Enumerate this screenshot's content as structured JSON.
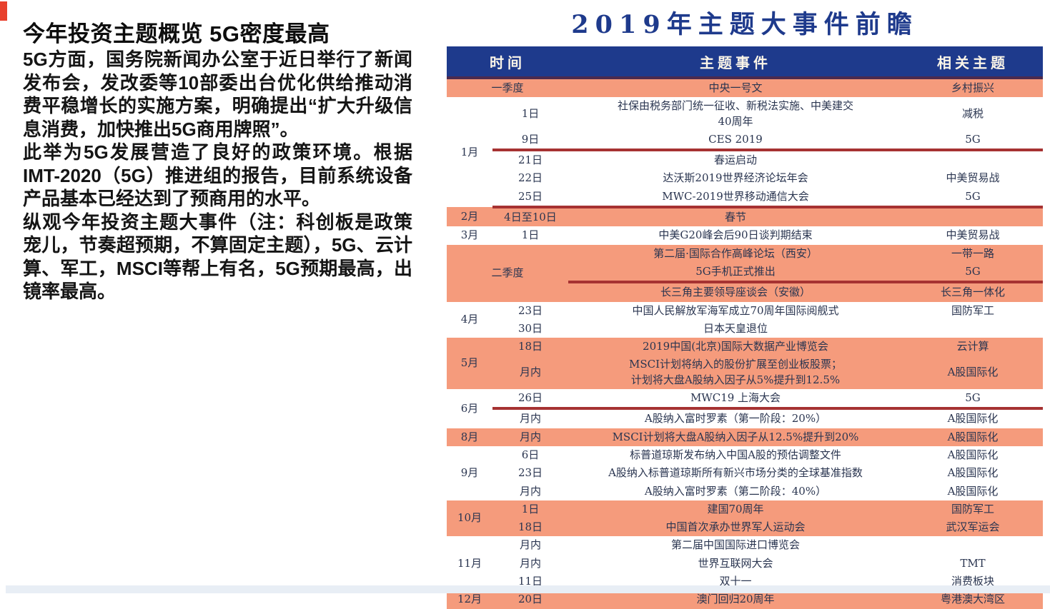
{
  "colors": {
    "navy": "#1E3A8C",
    "salmon_row": "#F59B7C",
    "underline_red": "#A63232",
    "corner_red": "#E8402C",
    "footer_blue": "#E8EEF5"
  },
  "left_panel": {
    "title": "今年投资主题概览  5G密度最高",
    "paragraphs": [
      "5G方面，国务院新闻办公室于近日举行了新闻发布会，发改委等10部委出台优化供给推动消费平稳增长的实施方案，明确提出“扩大升级信息消费，加快推出5G商用牌照”。",
      "此举为5G发展营造了良好的政策环境。根据IMT-2020（5G）推进组的报告，目前系统设备产品基本已经达到了预商用的水平。",
      "纵观今年投资主题大事件（注：科创板是政策宠儿，节奏超预期，不算固定主题），5G、云计算、军工，MSCI等帮上有名，5G预期最高，出镜率最高。"
    ]
  },
  "right_panel": {
    "table_title": "2019年主题大事件前瞻",
    "table": {
      "headers": {
        "time": "时间",
        "event": "主题事件",
        "theme": "相关主题"
      },
      "rows": [
        {
          "month": "一季度",
          "quarter": true,
          "event": "中央一号文",
          "theme": "乡村振兴",
          "orange": true
        },
        {
          "month": "1月",
          "rowspan": 5,
          "day": "1日",
          "event": "社保由税务部门统一征收、新税法实施、中美建交\n40周年",
          "theme": "减税"
        },
        {
          "day": "9日",
          "event": "CES 2019",
          "theme": "5G",
          "redline": true
        },
        {
          "day": "21日",
          "event": "春运启动",
          "theme": ""
        },
        {
          "day": "22日",
          "event": "达沃斯2019世界经济论坛年会",
          "theme": "中美贸易战"
        },
        {
          "day": "25日",
          "event": "MWC-2019世界移动通信大会",
          "theme": "5G",
          "redline": true
        },
        {
          "month": "2月",
          "day": "4日至10日",
          "event": "春节",
          "theme": "",
          "orange": true
        },
        {
          "month": "3月",
          "day": "1日",
          "event": "中美G20峰会后90日谈判期结束",
          "theme": "中美贸易战"
        },
        {
          "month": "二季度",
          "quarter": true,
          "rowspan": 3,
          "event": "第二届·国际合作高峰论坛（西安）",
          "theme": "一带一路",
          "orange": true
        },
        {
          "event": "5G手机正式推出",
          "theme": "5G",
          "orange": true,
          "redline": true
        },
        {
          "event": "长三角主要领导座谈会（安徽）",
          "theme": "长三角一体化",
          "orange": true
        },
        {
          "month": "4月",
          "rowspan": 2,
          "day": "23日",
          "event": "中国人民解放军海军成立70周年国际阅舰式",
          "theme": "国防军工"
        },
        {
          "day": "30日",
          "event": "日本天皇退位",
          "theme": ""
        },
        {
          "month": "5月",
          "rowspan": 2,
          "day": "18日",
          "event": "2019中国(北京)国际大数据产业博览会",
          "theme": "云计算",
          "orange": true
        },
        {
          "day": "月内",
          "event": "MSCI计划将纳入的股份扩展至创业板股票；\n计划将大盘A股纳入因子从5%提升到12.5%",
          "theme": "A股国际化",
          "orange": true
        },
        {
          "month": "6月",
          "rowspan": 2,
          "day": "26日",
          "event": "MWC19 上海大会",
          "theme": "5G",
          "redline": true
        },
        {
          "day": "月内",
          "event": "A股纳入富时罗素（第一阶段：20%）",
          "theme": "A股国际化"
        },
        {
          "month": "8月",
          "day": "月内",
          "event": "MSCI计划将大盘A股纳入因子从12.5%提升到20%",
          "theme": "A股国际化",
          "orange": true
        },
        {
          "month": "9月",
          "rowspan": 3,
          "day": "6日",
          "event": "标普道琼斯发布纳入中国A股的预估调整文件",
          "theme": "A股国际化"
        },
        {
          "day": "23日",
          "event": "A股纳入标普道琼斯所有新兴市场分类的全球基准指数",
          "theme": "A股国际化"
        },
        {
          "day": "月内",
          "event": "A股纳入富时罗素（第二阶段：40%）",
          "theme": "A股国际化"
        },
        {
          "month": "10月",
          "rowspan": 2,
          "day": "1日",
          "event": "建国70周年",
          "theme": "国防军工",
          "orange": true
        },
        {
          "day": "18日",
          "event": "中国首次承办世界军人运动会",
          "theme": "武汉军运会",
          "orange": true
        },
        {
          "month": "11月",
          "rowspan": 3,
          "day": "月内",
          "event": "第二届中国国际进口博览会",
          "theme": ""
        },
        {
          "day": "月内",
          "event": "世界互联网大会",
          "theme": "TMT"
        },
        {
          "day": "11日",
          "event": "双十一",
          "theme": "消费板块"
        },
        {
          "month": "12月",
          "day": "20日",
          "event": "澳门回归20周年",
          "theme": "粤港澳大湾区",
          "orange": true
        }
      ]
    }
  }
}
